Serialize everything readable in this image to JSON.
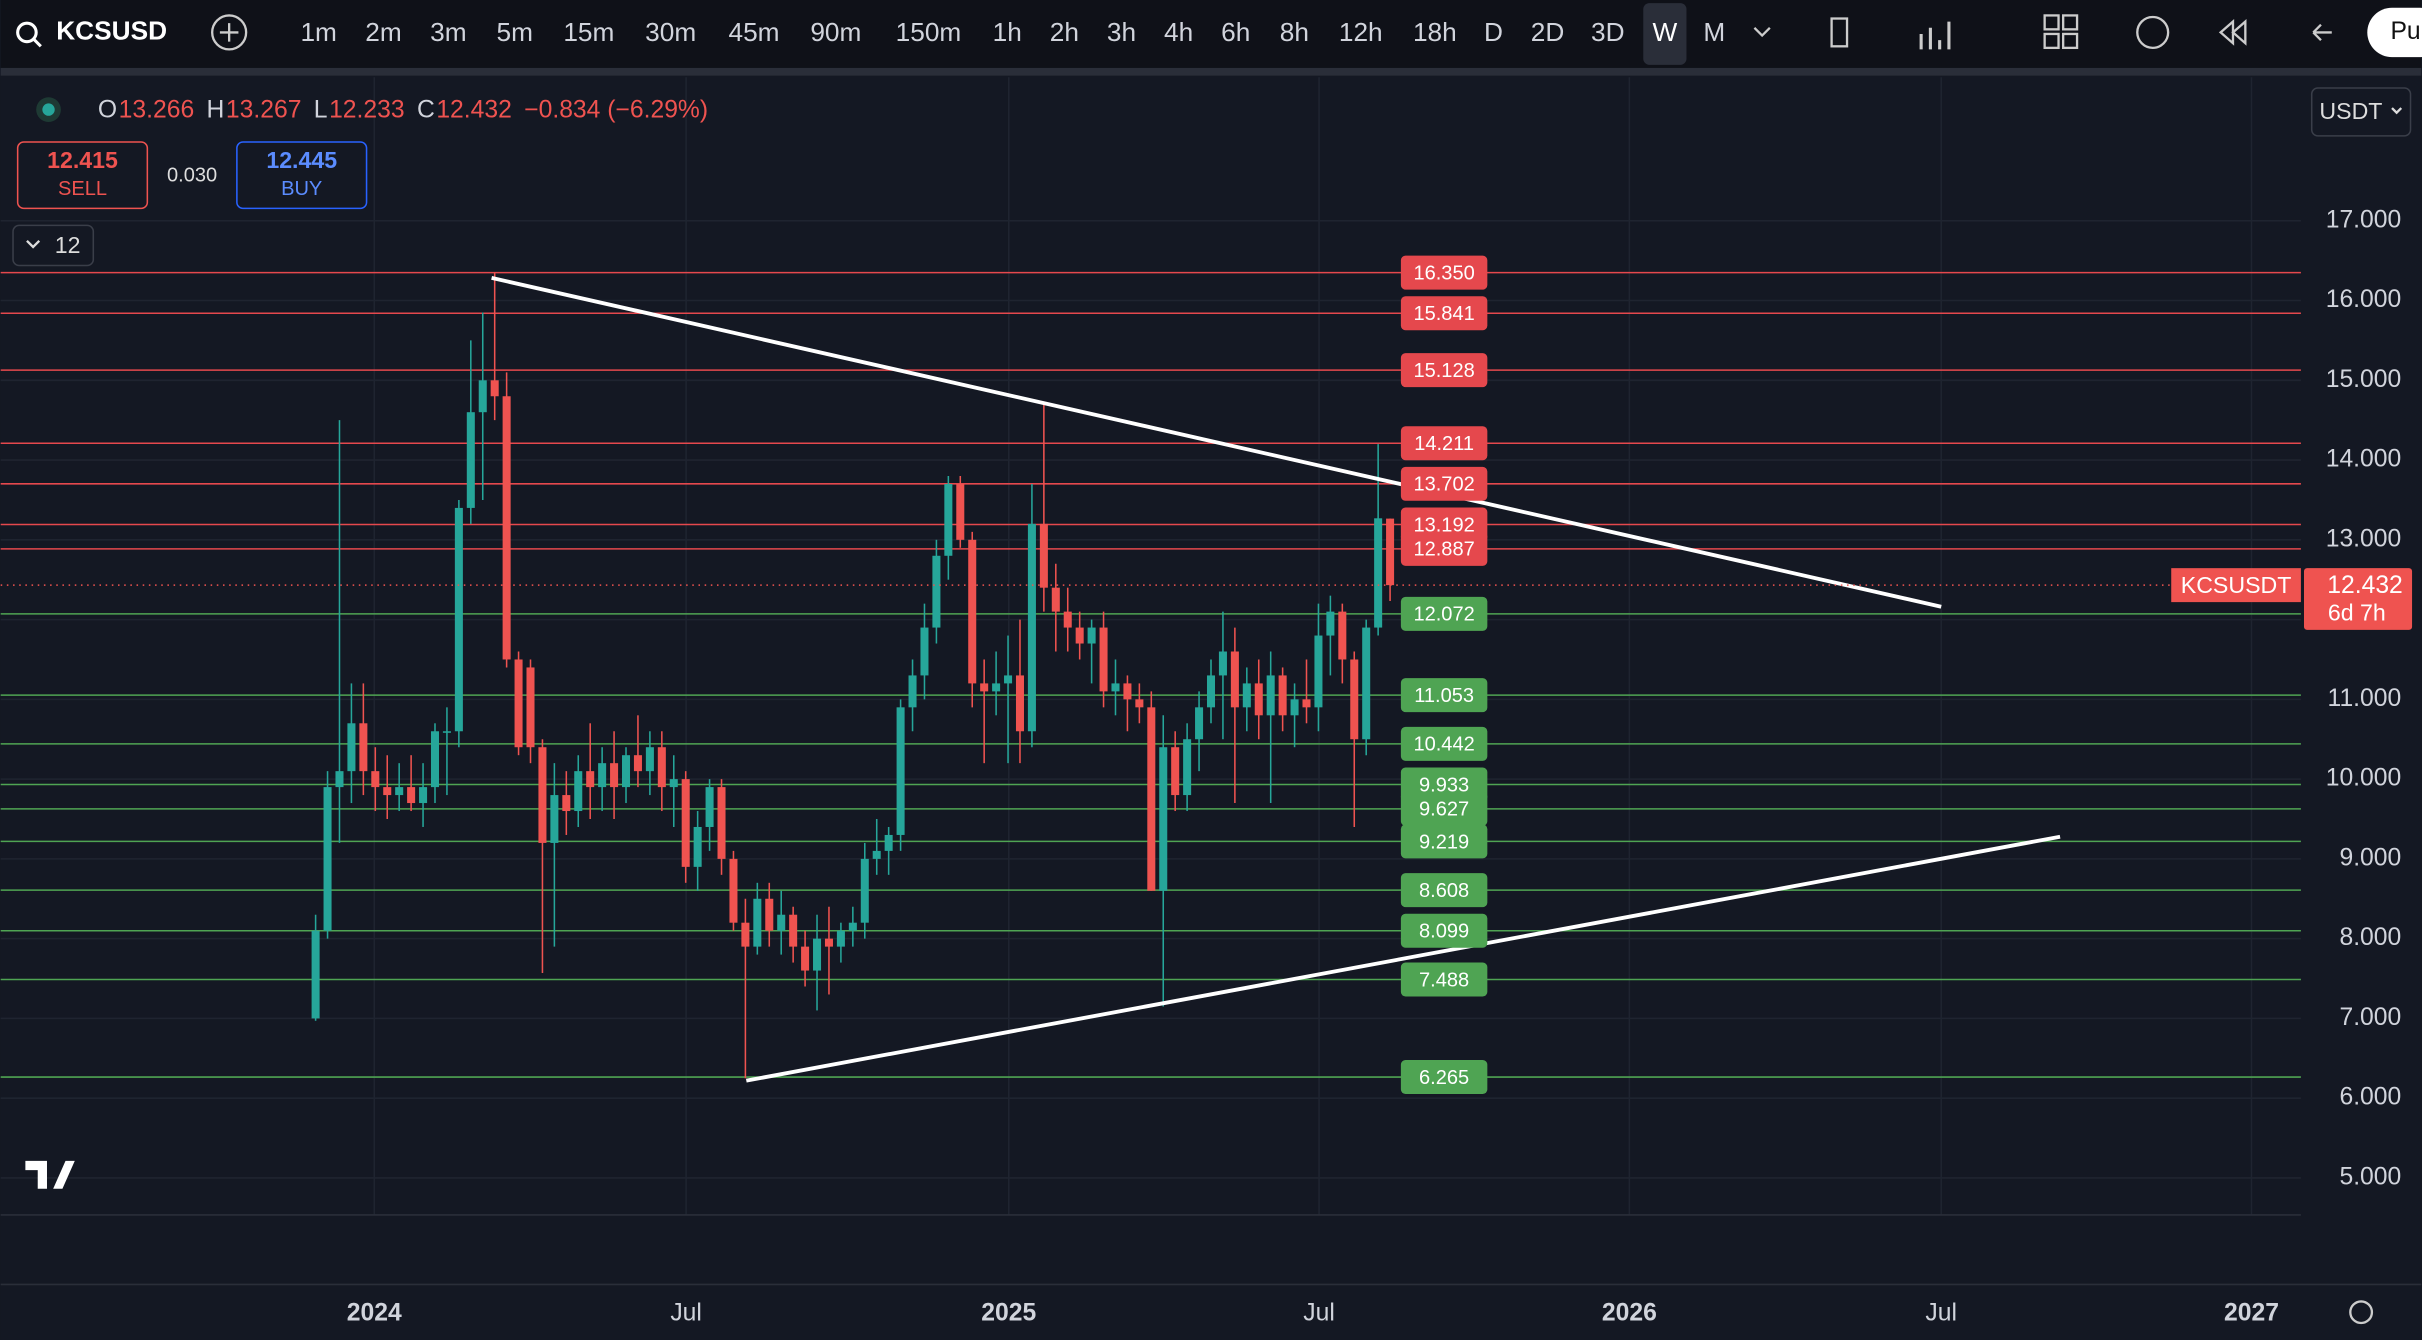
{
  "toolbar": {
    "symbol": "KCSUSD",
    "intervals": [
      "1m",
      "2m",
      "3m",
      "5m",
      "15m",
      "30m",
      "45m",
      "90m",
      "150m",
      "1h",
      "2h",
      "3h",
      "4h",
      "6h",
      "8h",
      "12h",
      "18h",
      "D",
      "2D",
      "3D",
      "W",
      "M"
    ],
    "active_interval": "W",
    "publish": "Pu"
  },
  "legend": {
    "ohlc": [
      {
        "key": "O",
        "value": "13.266"
      },
      {
        "key": "H",
        "value": "13.267"
      },
      {
        "key": "L",
        "value": "12.233"
      },
      {
        "key": "C",
        "value": "12.432"
      }
    ],
    "change": "−0.834 (−6.29%)"
  },
  "trade": {
    "sell_price": "12.415",
    "sell_label": "SELL",
    "spread": "0.030",
    "buy_price": "12.445",
    "buy_label": "BUY"
  },
  "indicators": {
    "count": "12"
  },
  "currency": "USDT",
  "chart_data": {
    "type": "candlestick",
    "up_color": "#26a69a",
    "down_color": "#ef5350",
    "ylim": [
      4.536,
      18.8
    ],
    "yticks": [
      {
        "value": 17,
        "label": "17.000"
      },
      {
        "value": 16,
        "label": "16.000"
      },
      {
        "value": 15,
        "label": "15.000"
      },
      {
        "value": 14,
        "label": "14.000"
      },
      {
        "value": 13,
        "label": "13.000"
      },
      {
        "value": 12,
        "label": "12.000"
      },
      {
        "value": 11,
        "label": "11.000"
      },
      {
        "value": 10,
        "label": "10.000"
      },
      {
        "value": 9,
        "label": "9.000"
      },
      {
        "value": 8,
        "label": "8.000"
      },
      {
        "value": 7,
        "label": "7.000"
      },
      {
        "value": 6,
        "label": "6.000"
      },
      {
        "value": 5,
        "label": "5.000"
      }
    ],
    "x_labels": [
      "2024",
      "Jul",
      "2025",
      "Jul",
      "2026",
      "Jul",
      "2027"
    ],
    "open": [
      7.0,
      8.1,
      9.9,
      10.1,
      10.7,
      10.1,
      9.9,
      9.8,
      9.9,
      9.7,
      9.9,
      10.6,
      10.6,
      13.4,
      14.6,
      15.0,
      14.8,
      11.5,
      11.4,
      10.4,
      9.2,
      9.8,
      9.6,
      10.1,
      9.9,
      10.2,
      9.9,
      10.3,
      10.1,
      10.4,
      9.9,
      10.0,
      8.9,
      9.4,
      9.9,
      9.0,
      8.2,
      7.9,
      8.5,
      8.1,
      8.3,
      7.9,
      7.6,
      8.0,
      7.9,
      8.1,
      8.2,
      9.0,
      9.1,
      9.3,
      10.9,
      11.3,
      11.9,
      12.8,
      13.7,
      13.0,
      11.2,
      11.1,
      11.2,
      11.3,
      10.6,
      13.2,
      12.4,
      12.1,
      11.9,
      11.7,
      11.9,
      11.1,
      11.2,
      11.0,
      10.9,
      8.6,
      10.4,
      9.8,
      10.5,
      10.9,
      11.3,
      11.6,
      10.9,
      11.2,
      10.8,
      11.3,
      10.8,
      11.0,
      10.9,
      11.8,
      12.1,
      11.5,
      10.5,
      11.9,
      13.266
    ],
    "high": [
      8.3,
      10.1,
      14.5,
      11.2,
      11.2,
      10.4,
      10.3,
      10.2,
      10.3,
      10.2,
      10.7,
      10.9,
      13.5,
      15.5,
      15.85,
      16.35,
      15.1,
      11.6,
      11.5,
      10.5,
      10.2,
      10.1,
      10.3,
      10.7,
      10.4,
      10.6,
      10.4,
      10.8,
      10.6,
      10.6,
      10.3,
      10.1,
      9.6,
      10.0,
      10.0,
      9.1,
      8.5,
      8.7,
      8.7,
      8.6,
      8.4,
      8.1,
      8.3,
      8.4,
      8.2,
      8.4,
      9.2,
      9.5,
      9.4,
      11.0,
      11.5,
      12.2,
      13.0,
      13.8,
      13.8,
      13.1,
      11.5,
      11.6,
      11.8,
      12.0,
      13.7,
      14.7,
      12.7,
      12.4,
      12.1,
      12.0,
      12.1,
      11.5,
      11.3,
      11.2,
      11.1,
      10.8,
      10.6,
      10.7,
      11.1,
      11.5,
      12.1,
      11.9,
      11.4,
      11.5,
      11.6,
      11.4,
      11.2,
      11.5,
      12.2,
      12.3,
      12.2,
      11.6,
      12.0,
      14.2,
      13.267
    ],
    "low": [
      6.97,
      8.0,
      9.2,
      9.7,
      9.8,
      9.6,
      9.5,
      9.6,
      9.6,
      9.4,
      9.7,
      9.8,
      10.4,
      13.2,
      13.5,
      14.5,
      11.4,
      10.3,
      10.2,
      7.57,
      7.9,
      9.3,
      9.4,
      9.5,
      9.6,
      9.5,
      9.7,
      9.9,
      9.8,
      9.6,
      9.4,
      8.7,
      8.6,
      9.1,
      8.8,
      8.1,
      6.25,
      7.8,
      7.9,
      7.8,
      7.7,
      7.4,
      7.1,
      7.3,
      7.7,
      7.9,
      8.0,
      8.8,
      8.8,
      9.1,
      10.6,
      11.0,
      11.7,
      12.5,
      12.9,
      10.9,
      10.2,
      10.8,
      10.2,
      10.2,
      10.4,
      12.1,
      11.6,
      11.6,
      11.5,
      11.2,
      10.9,
      10.8,
      10.6,
      10.7,
      8.6,
      7.15,
      9.6,
      9.6,
      10.1,
      10.7,
      10.5,
      9.7,
      10.6,
      10.5,
      9.7,
      10.6,
      10.4,
      10.7,
      10.6,
      11.3,
      11.2,
      9.4,
      10.3,
      11.8,
      12.233
    ],
    "close": [
      8.1,
      9.9,
      10.1,
      10.7,
      10.1,
      9.9,
      9.8,
      9.9,
      9.7,
      9.9,
      10.6,
      10.6,
      13.4,
      14.6,
      15.0,
      14.8,
      11.5,
      10.4,
      10.4,
      9.2,
      9.8,
      9.6,
      10.1,
      9.9,
      10.2,
      9.9,
      10.3,
      10.1,
      10.4,
      9.9,
      10.0,
      8.9,
      9.4,
      9.9,
      9.0,
      8.2,
      7.9,
      8.5,
      8.1,
      8.3,
      7.9,
      7.6,
      8.0,
      7.9,
      8.1,
      8.2,
      9.0,
      9.1,
      9.3,
      10.9,
      11.3,
      11.9,
      12.8,
      13.7,
      13.0,
      11.2,
      11.1,
      11.2,
      11.3,
      10.6,
      13.2,
      12.4,
      12.1,
      11.9,
      11.7,
      11.9,
      11.1,
      11.2,
      11.0,
      10.9,
      8.6,
      10.4,
      9.8,
      10.5,
      10.9,
      11.3,
      11.6,
      10.9,
      11.2,
      10.8,
      11.3,
      10.8,
      11.0,
      10.9,
      11.8,
      12.1,
      11.5,
      10.5,
      11.9,
      13.27,
      12.432
    ],
    "resistance": {
      "color": "#e5484d",
      "levels": [
        {
          "value": 16.35,
          "label": "16.350"
        },
        {
          "value": 15.841,
          "label": "15.841"
        },
        {
          "value": 15.128,
          "label": "15.128"
        },
        {
          "value": 14.211,
          "label": "14.211"
        },
        {
          "value": 13.702,
          "label": "13.702"
        },
        {
          "value": 13.192,
          "label": "13.192"
        },
        {
          "value": 12.887,
          "label": "12.887"
        }
      ]
    },
    "support": {
      "color": "#4fa453",
      "levels": [
        {
          "value": 12.072,
          "label": "12.072"
        },
        {
          "value": 11.053,
          "label": "11.053"
        },
        {
          "value": 10.442,
          "label": "10.442"
        },
        {
          "value": 9.933,
          "label": "9.933"
        },
        {
          "value": 9.627,
          "label": "9.627"
        },
        {
          "value": 9.219,
          "label": "9.219"
        },
        {
          "value": 8.608,
          "label": "8.608"
        },
        {
          "value": 8.099,
          "label": "8.099"
        },
        {
          "value": 7.488,
          "label": "7.488"
        },
        {
          "value": 6.265,
          "label": "6.265"
        }
      ]
    },
    "last_price": 12.432,
    "last_symbol": "KCSUSDT",
    "countdown": "6d 7h"
  }
}
